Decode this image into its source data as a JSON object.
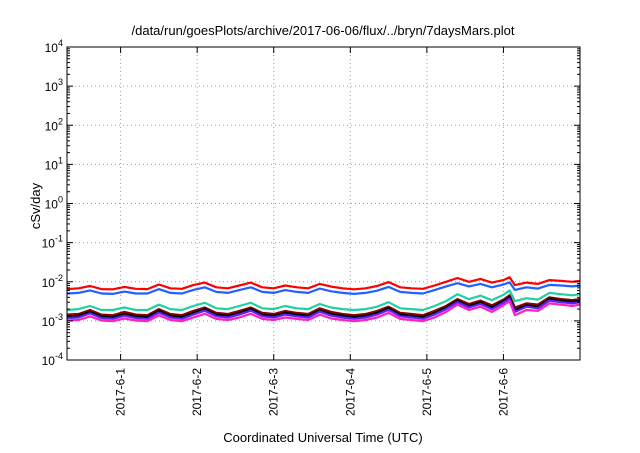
{
  "chart_data": {
    "type": "line",
    "title": "/data/run/goesPlots/archive/2017-06-06/flux/../bryn/7daysMars.plot",
    "xlabel": "Coordinated Universal Time (UTC)",
    "ylabel": "cSv/day",
    "yscale": "log",
    "ylim": [
      0.0001,
      10000
    ],
    "y_ticks": [
      {
        "value": 0.0001,
        "base": "10",
        "exp": "-4"
      },
      {
        "value": 0.001,
        "base": "10",
        "exp": "-3"
      },
      {
        "value": 0.01,
        "base": "10",
        "exp": "-2"
      },
      {
        "value": 0.1,
        "base": "10",
        "exp": "-1"
      },
      {
        "value": 1,
        "base": "10",
        "exp": "0"
      },
      {
        "value": 10,
        "base": "10",
        "exp": "1"
      },
      {
        "value": 100,
        "base": "10",
        "exp": "2"
      },
      {
        "value": 1000,
        "base": "10",
        "exp": "3"
      },
      {
        "value": 10000,
        "base": "10",
        "exp": "4"
      }
    ],
    "x_unit": "day",
    "xlim": [
      0.3,
      7.0
    ],
    "x_ticks": [
      {
        "value": 1,
        "label": "2017-6-1"
      },
      {
        "value": 2,
        "label": "2017-6-2"
      },
      {
        "value": 3,
        "label": "2017-6-3"
      },
      {
        "value": 4,
        "label": "2017-6-4"
      },
      {
        "value": 5,
        "label": "2017-6-5"
      },
      {
        "value": 6,
        "label": "2017-6-6"
      }
    ],
    "grid": true,
    "x": [
      0.3,
      0.45,
      0.6,
      0.75,
      0.9,
      1.05,
      1.2,
      1.35,
      1.5,
      1.65,
      1.8,
      1.95,
      2.1,
      2.25,
      2.4,
      2.55,
      2.7,
      2.85,
      3.0,
      3.15,
      3.3,
      3.45,
      3.6,
      3.75,
      3.9,
      4.05,
      4.2,
      4.35,
      4.5,
      4.65,
      4.8,
      4.95,
      5.1,
      5.25,
      5.4,
      5.55,
      5.7,
      5.85,
      6.0,
      6.08,
      6.15,
      6.3,
      6.45,
      6.6,
      6.75,
      6.9,
      7.0
    ],
    "series": [
      {
        "color": "#ff0000",
        "values": [
          0.0065,
          0.0068,
          0.0078,
          0.0065,
          0.0064,
          0.0074,
          0.0066,
          0.0065,
          0.0085,
          0.0068,
          0.0066,
          0.0082,
          0.0095,
          0.0072,
          0.0068,
          0.008,
          0.0095,
          0.0072,
          0.0068,
          0.008,
          0.0072,
          0.0068,
          0.0088,
          0.0075,
          0.0068,
          0.0064,
          0.0068,
          0.0078,
          0.0098,
          0.0072,
          0.0068,
          0.0066,
          0.008,
          0.01,
          0.0125,
          0.01,
          0.0118,
          0.0095,
          0.011,
          0.013,
          0.0082,
          0.0095,
          0.0088,
          0.011,
          0.0105,
          0.01,
          0.0105
        ]
      },
      {
        "color": "#2060ff",
        "values": [
          0.005,
          0.0052,
          0.006,
          0.005,
          0.0049,
          0.0056,
          0.005,
          0.005,
          0.0065,
          0.0052,
          0.005,
          0.0062,
          0.0072,
          0.0055,
          0.0052,
          0.0061,
          0.0072,
          0.0055,
          0.0052,
          0.0061,
          0.0055,
          0.0052,
          0.0067,
          0.0057,
          0.0052,
          0.0049,
          0.0052,
          0.0059,
          0.0074,
          0.0055,
          0.0052,
          0.005,
          0.0061,
          0.0076,
          0.0092,
          0.0076,
          0.0088,
          0.0072,
          0.0085,
          0.0096,
          0.0062,
          0.0072,
          0.0067,
          0.0083,
          0.008,
          0.0076,
          0.008
        ]
      },
      {
        "color": "#20d0a0",
        "values": [
          0.0019,
          0.002,
          0.0024,
          0.0019,
          0.0019,
          0.0022,
          0.0019,
          0.0019,
          0.0026,
          0.002,
          0.0019,
          0.0024,
          0.0029,
          0.0021,
          0.002,
          0.0024,
          0.0029,
          0.0021,
          0.002,
          0.0024,
          0.0021,
          0.002,
          0.0027,
          0.0022,
          0.002,
          0.0019,
          0.002,
          0.0023,
          0.003,
          0.0021,
          0.002,
          0.0019,
          0.0024,
          0.0032,
          0.0048,
          0.0036,
          0.0044,
          0.0034,
          0.0046,
          0.006,
          0.0032,
          0.0038,
          0.0035,
          0.0052,
          0.0048,
          0.0045,
          0.0048
        ]
      },
      {
        "color": "#8b0000",
        "values": [
          0.00145,
          0.0015,
          0.0019,
          0.00145,
          0.0014,
          0.0017,
          0.00145,
          0.0014,
          0.002,
          0.0015,
          0.0014,
          0.0018,
          0.0022,
          0.0016,
          0.0015,
          0.0018,
          0.0022,
          0.0016,
          0.0015,
          0.0018,
          0.0016,
          0.0015,
          0.0021,
          0.0017,
          0.0015,
          0.0014,
          0.0015,
          0.0018,
          0.0023,
          0.0016,
          0.0015,
          0.0014,
          0.0018,
          0.0024,
          0.0036,
          0.0027,
          0.0033,
          0.0025,
          0.0035,
          0.0045,
          0.0022,
          0.0028,
          0.0026,
          0.004,
          0.0036,
          0.0034,
          0.0036
        ]
      },
      {
        "color": "#000000",
        "values": [
          0.0013,
          0.00135,
          0.0017,
          0.0013,
          0.00125,
          0.0015,
          0.0013,
          0.00125,
          0.0018,
          0.00135,
          0.00125,
          0.0016,
          0.002,
          0.00145,
          0.00135,
          0.0016,
          0.002,
          0.00145,
          0.00135,
          0.0016,
          0.00145,
          0.00135,
          0.0019,
          0.0015,
          0.00135,
          0.00125,
          0.00135,
          0.0016,
          0.0021,
          0.00145,
          0.00135,
          0.00125,
          0.0016,
          0.0022,
          0.0033,
          0.0024,
          0.003,
          0.0022,
          0.0032,
          0.0041,
          0.0019,
          0.0025,
          0.0023,
          0.0036,
          0.0033,
          0.0031,
          0.0033
        ]
      },
      {
        "color": "#6020ff",
        "values": [
          0.00118,
          0.00122,
          0.00155,
          0.00118,
          0.00113,
          0.00136,
          0.00118,
          0.00113,
          0.00163,
          0.00122,
          0.00113,
          0.00145,
          0.00182,
          0.00131,
          0.00122,
          0.00145,
          0.00182,
          0.00131,
          0.00122,
          0.00145,
          0.00131,
          0.00122,
          0.00172,
          0.00136,
          0.00122,
          0.00113,
          0.00122,
          0.00145,
          0.00191,
          0.00131,
          0.00122,
          0.00113,
          0.00145,
          0.002,
          0.003,
          0.0022,
          0.0027,
          0.002,
          0.0029,
          0.0037,
          0.0017,
          0.0023,
          0.0021,
          0.0033,
          0.003,
          0.0028,
          0.003
        ]
      },
      {
        "color": "#ff20c0",
        "values": [
          0.00102,
          0.00105,
          0.0013,
          0.00102,
          0.00098,
          0.00115,
          0.00102,
          0.00098,
          0.00138,
          0.00105,
          0.00098,
          0.00122,
          0.00152,
          0.00112,
          0.00105,
          0.00122,
          0.00152,
          0.00112,
          0.00105,
          0.00122,
          0.00112,
          0.00105,
          0.00145,
          0.00115,
          0.00105,
          0.00098,
          0.00105,
          0.00122,
          0.0016,
          0.00112,
          0.00105,
          0.00098,
          0.00122,
          0.0017,
          0.0026,
          0.0019,
          0.0023,
          0.0017,
          0.0025,
          0.0032,
          0.0014,
          0.0019,
          0.0018,
          0.0028,
          0.0026,
          0.0024,
          0.0026
        ]
      }
    ]
  }
}
